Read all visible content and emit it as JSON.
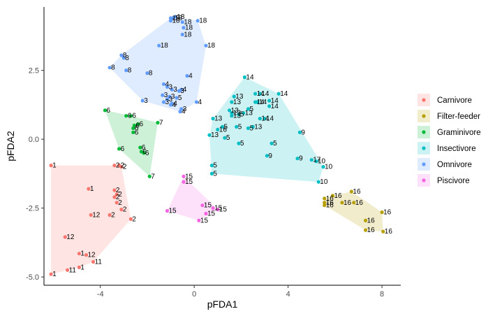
{
  "chart_data": {
    "type": "scatter",
    "title": "",
    "xlabel": "pFDA1",
    "ylabel": "pFDA2",
    "xlim": [
      -6.4,
      8.8
    ],
    "ylim": [
      -5.3,
      4.8
    ],
    "xticks": [
      -4,
      0,
      4,
      8
    ],
    "yticks": [
      -5.0,
      -2.5,
      0.0,
      2.5
    ],
    "xtick_labels": [
      "-4",
      "0",
      "4",
      "8"
    ],
    "ytick_labels": [
      "-5.0",
      "-2.5",
      "0.0",
      "2.5"
    ],
    "grid": false,
    "legend_position": "right",
    "series": [
      {
        "name": "Carnivore",
        "color": "#F8766D",
        "points": [
          {
            "x": -6.1,
            "y": -0.95,
            "label": "1"
          },
          {
            "x": -3.4,
            "y": -0.95,
            "label": "2"
          },
          {
            "x": -3.2,
            "y": -0.95,
            "label": "2"
          },
          {
            "x": -3.1,
            "y": -1.0,
            "label": "2"
          },
          {
            "x": -4.5,
            "y": -1.8,
            "label": "1"
          },
          {
            "x": -3.4,
            "y": -1.85,
            "label": "2"
          },
          {
            "x": -3.3,
            "y": -2.0,
            "label": "2"
          },
          {
            "x": -3.4,
            "y": -2.1,
            "label": "2"
          },
          {
            "x": -3.3,
            "y": -2.3,
            "label": "2"
          },
          {
            "x": -3.1,
            "y": -2.55,
            "label": "2"
          },
          {
            "x": -3.6,
            "y": -2.75,
            "label": "2"
          },
          {
            "x": -4.4,
            "y": -2.75,
            "label": "12"
          },
          {
            "x": -2.7,
            "y": -2.9,
            "label": "2"
          },
          {
            "x": -5.5,
            "y": -3.55,
            "label": "12"
          },
          {
            "x": -4.9,
            "y": -4.15,
            "label": "1"
          },
          {
            "x": -4.6,
            "y": -4.2,
            "label": "12"
          },
          {
            "x": -4.3,
            "y": -4.45,
            "label": "11"
          },
          {
            "x": -4.9,
            "y": -4.65,
            "label": "1"
          },
          {
            "x": -5.4,
            "y": -4.75,
            "label": "11"
          },
          {
            "x": -6.1,
            "y": -4.9,
            "label": "1"
          }
        ]
      },
      {
        "name": "Filter-feeder",
        "color": "#B79F00",
        "points": [
          {
            "x": 5.55,
            "y": -2.15,
            "label": "16"
          },
          {
            "x": 5.9,
            "y": -2.05,
            "label": "16"
          },
          {
            "x": 5.55,
            "y": -2.3,
            "label": "16"
          },
          {
            "x": 6.7,
            "y": -1.9,
            "label": "16"
          },
          {
            "x": 6.3,
            "y": -2.3,
            "label": "16"
          },
          {
            "x": 6.8,
            "y": -2.3,
            "label": "16"
          },
          {
            "x": 5.55,
            "y": -2.4,
            "label": "16"
          },
          {
            "x": 7.3,
            "y": -2.95,
            "label": "16"
          },
          {
            "x": 8.0,
            "y": -2.65,
            "label": "16"
          },
          {
            "x": 7.3,
            "y": -3.3,
            "label": "16"
          },
          {
            "x": 8.05,
            "y": -3.35,
            "label": "16"
          }
        ]
      },
      {
        "name": "Graminivore",
        "color": "#00BA38",
        "points": [
          {
            "x": -3.8,
            "y": 1.05,
            "label": "6"
          },
          {
            "x": -2.9,
            "y": 0.85,
            "label": "6"
          },
          {
            "x": -2.7,
            "y": 0.85,
            "label": "6"
          },
          {
            "x": -2.4,
            "y": 0.55,
            "label": "6"
          },
          {
            "x": -2.55,
            "y": 0.5,
            "label": "6"
          },
          {
            "x": -2.6,
            "y": 0.4,
            "label": "6"
          },
          {
            "x": -1.55,
            "y": 0.6,
            "label": "7"
          },
          {
            "x": -2.6,
            "y": 0.25,
            "label": "6"
          },
          {
            "x": -2.3,
            "y": -0.3,
            "label": "6"
          },
          {
            "x": -3.2,
            "y": -0.35,
            "label": "6"
          },
          {
            "x": -2.25,
            "y": -0.45,
            "label": "6"
          },
          {
            "x": -2.15,
            "y": -0.5,
            "label": "6"
          },
          {
            "x": -1.9,
            "y": -1.35,
            "label": "7"
          }
        ]
      },
      {
        "name": "Insectivore",
        "color": "#00BFC4",
        "points": [
          {
            "x": 2.15,
            "y": 2.25,
            "label": "14"
          },
          {
            "x": 1.7,
            "y": 1.55,
            "label": "13"
          },
          {
            "x": 2.6,
            "y": 1.65,
            "label": "14"
          },
          {
            "x": 2.8,
            "y": 1.65,
            "label": "14"
          },
          {
            "x": 3.6,
            "y": 1.65,
            "label": "14"
          },
          {
            "x": 1.6,
            "y": 1.35,
            "label": "13"
          },
          {
            "x": 2.6,
            "y": 1.35,
            "label": "14"
          },
          {
            "x": 2.7,
            "y": 1.35,
            "label": "14"
          },
          {
            "x": 3.2,
            "y": 1.4,
            "label": "14"
          },
          {
            "x": 1.5,
            "y": 1.05,
            "label": "13"
          },
          {
            "x": 2.3,
            "y": 1.1,
            "label": "5"
          },
          {
            "x": 3.2,
            "y": 1.2,
            "label": "14"
          },
          {
            "x": 1.6,
            "y": 0.95,
            "label": "13"
          },
          {
            "x": 2.1,
            "y": 0.95,
            "label": "13"
          },
          {
            "x": 1.9,
            "y": 0.9,
            "label": "5"
          },
          {
            "x": 1.6,
            "y": 0.85,
            "label": "13"
          },
          {
            "x": 0.8,
            "y": 0.75,
            "label": "13"
          },
          {
            "x": 2.8,
            "y": 0.75,
            "label": "14"
          },
          {
            "x": 3.0,
            "y": 0.75,
            "label": "14"
          },
          {
            "x": 2.5,
            "y": 0.45,
            "label": "13"
          },
          {
            "x": 1.2,
            "y": 0.45,
            "label": "5"
          },
          {
            "x": 1.8,
            "y": 0.45,
            "label": "5"
          },
          {
            "x": 2.3,
            "y": 0.4,
            "label": "5"
          },
          {
            "x": 1.0,
            "y": 0.35,
            "label": "16"
          },
          {
            "x": 0.65,
            "y": 0.15,
            "label": "13"
          },
          {
            "x": 1.3,
            "y": 0.05,
            "label": "5"
          },
          {
            "x": 4.5,
            "y": 0.25,
            "label": "9"
          },
          {
            "x": 1.9,
            "y": -0.15,
            "label": "5"
          },
          {
            "x": 3.3,
            "y": -0.15,
            "label": "5"
          },
          {
            "x": 3.1,
            "y": -0.6,
            "label": "9"
          },
          {
            "x": 4.4,
            "y": -0.7,
            "label": "9"
          },
          {
            "x": 5.0,
            "y": -0.75,
            "label": "17"
          },
          {
            "x": 5.2,
            "y": -0.8,
            "label": "10"
          },
          {
            "x": 5.5,
            "y": -1.0,
            "label": "10"
          },
          {
            "x": 0.75,
            "y": -0.95,
            "label": "5"
          },
          {
            "x": 0.75,
            "y": -1.25,
            "label": "5"
          },
          {
            "x": 5.3,
            "y": -1.55,
            "label": "10"
          }
        ]
      },
      {
        "name": "Omnivore",
        "color": "#619CFF",
        "points": [
          {
            "x": -1.0,
            "y": 4.4,
            "label": "18"
          },
          {
            "x": -0.9,
            "y": 4.4,
            "label": "18"
          },
          {
            "x": -0.8,
            "y": 4.45,
            "label": "18"
          },
          {
            "x": -1.0,
            "y": 4.3,
            "label": "18"
          },
          {
            "x": 0.15,
            "y": 4.3,
            "label": "18"
          },
          {
            "x": -0.5,
            "y": 4.25,
            "label": "18"
          },
          {
            "x": -0.45,
            "y": 4.05,
            "label": "18"
          },
          {
            "x": -0.5,
            "y": 3.8,
            "label": "18"
          },
          {
            "x": 0.5,
            "y": 3.4,
            "label": "18"
          },
          {
            "x": -1.5,
            "y": 3.4,
            "label": "18"
          },
          {
            "x": -3.1,
            "y": 3.05,
            "label": "8"
          },
          {
            "x": -3.0,
            "y": 2.95,
            "label": "8"
          },
          {
            "x": -3.6,
            "y": 2.6,
            "label": "8"
          },
          {
            "x": -2.9,
            "y": 2.5,
            "label": "8"
          },
          {
            "x": -2.0,
            "y": 2.4,
            "label": "8"
          },
          {
            "x": -0.3,
            "y": 2.3,
            "label": "4"
          },
          {
            "x": -1.3,
            "y": 2.0,
            "label": "4"
          },
          {
            "x": -1.15,
            "y": 1.9,
            "label": "3"
          },
          {
            "x": -0.95,
            "y": 1.8,
            "label": "3"
          },
          {
            "x": -0.65,
            "y": 1.75,
            "label": "3"
          },
          {
            "x": -0.55,
            "y": 1.8,
            "label": "4"
          },
          {
            "x": -1.35,
            "y": 1.6,
            "label": "3"
          },
          {
            "x": -1.05,
            "y": 1.55,
            "label": "3"
          },
          {
            "x": -0.75,
            "y": 1.5,
            "label": "5"
          },
          {
            "x": -1.15,
            "y": 1.45,
            "label": "3"
          },
          {
            "x": -1.3,
            "y": 1.35,
            "label": "3"
          },
          {
            "x": -0.95,
            "y": 1.3,
            "label": "4"
          },
          {
            "x": -2.2,
            "y": 1.4,
            "label": "3"
          },
          {
            "x": -1.0,
            "y": 1.25,
            "label": "4"
          },
          {
            "x": 0.1,
            "y": 1.35,
            "label": "4"
          },
          {
            "x": -0.55,
            "y": 1.1,
            "label": "3"
          },
          {
            "x": -0.6,
            "y": 1.0,
            "label": "4"
          }
        ]
      },
      {
        "name": "Piscivore",
        "color": "#F564E3",
        "points": [
          {
            "x": -0.45,
            "y": -1.35,
            "label": "15"
          },
          {
            "x": -0.45,
            "y": -1.55,
            "label": "15"
          },
          {
            "x": -1.15,
            "y": -2.6,
            "label": "15"
          },
          {
            "x": 0.35,
            "y": -2.4,
            "label": "15"
          },
          {
            "x": 0.8,
            "y": -2.5,
            "label": "15"
          },
          {
            "x": 1.0,
            "y": -2.55,
            "label": "15"
          },
          {
            "x": 0.5,
            "y": -2.7,
            "label": "15"
          },
          {
            "x": 0.2,
            "y": -2.95,
            "label": "15"
          }
        ]
      }
    ]
  }
}
